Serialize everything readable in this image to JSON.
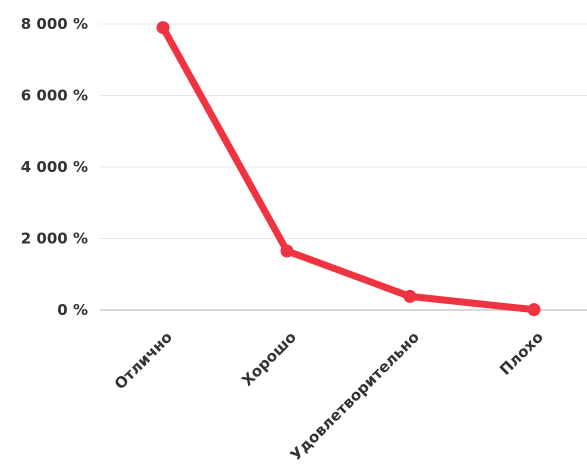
{
  "chart_data": {
    "type": "line",
    "categories": [
      "Отлично",
      "Хорошо",
      "Удовлетворительно",
      "Плохо"
    ],
    "series": [
      {
        "values": [
          7900,
          1650,
          380,
          10
        ],
        "color": "#ef3340"
      }
    ],
    "yticks": [
      {
        "value": 0,
        "label": "0 %"
      },
      {
        "value": 2000,
        "label": "2 000 %"
      },
      {
        "value": 4000,
        "label": "4 000 %"
      },
      {
        "value": 6000,
        "label": "6 000 %"
      },
      {
        "value": 8000,
        "label": "8 000 %"
      }
    ],
    "ylim": [
      0,
      8000
    ],
    "grid": true,
    "legend": "none"
  }
}
